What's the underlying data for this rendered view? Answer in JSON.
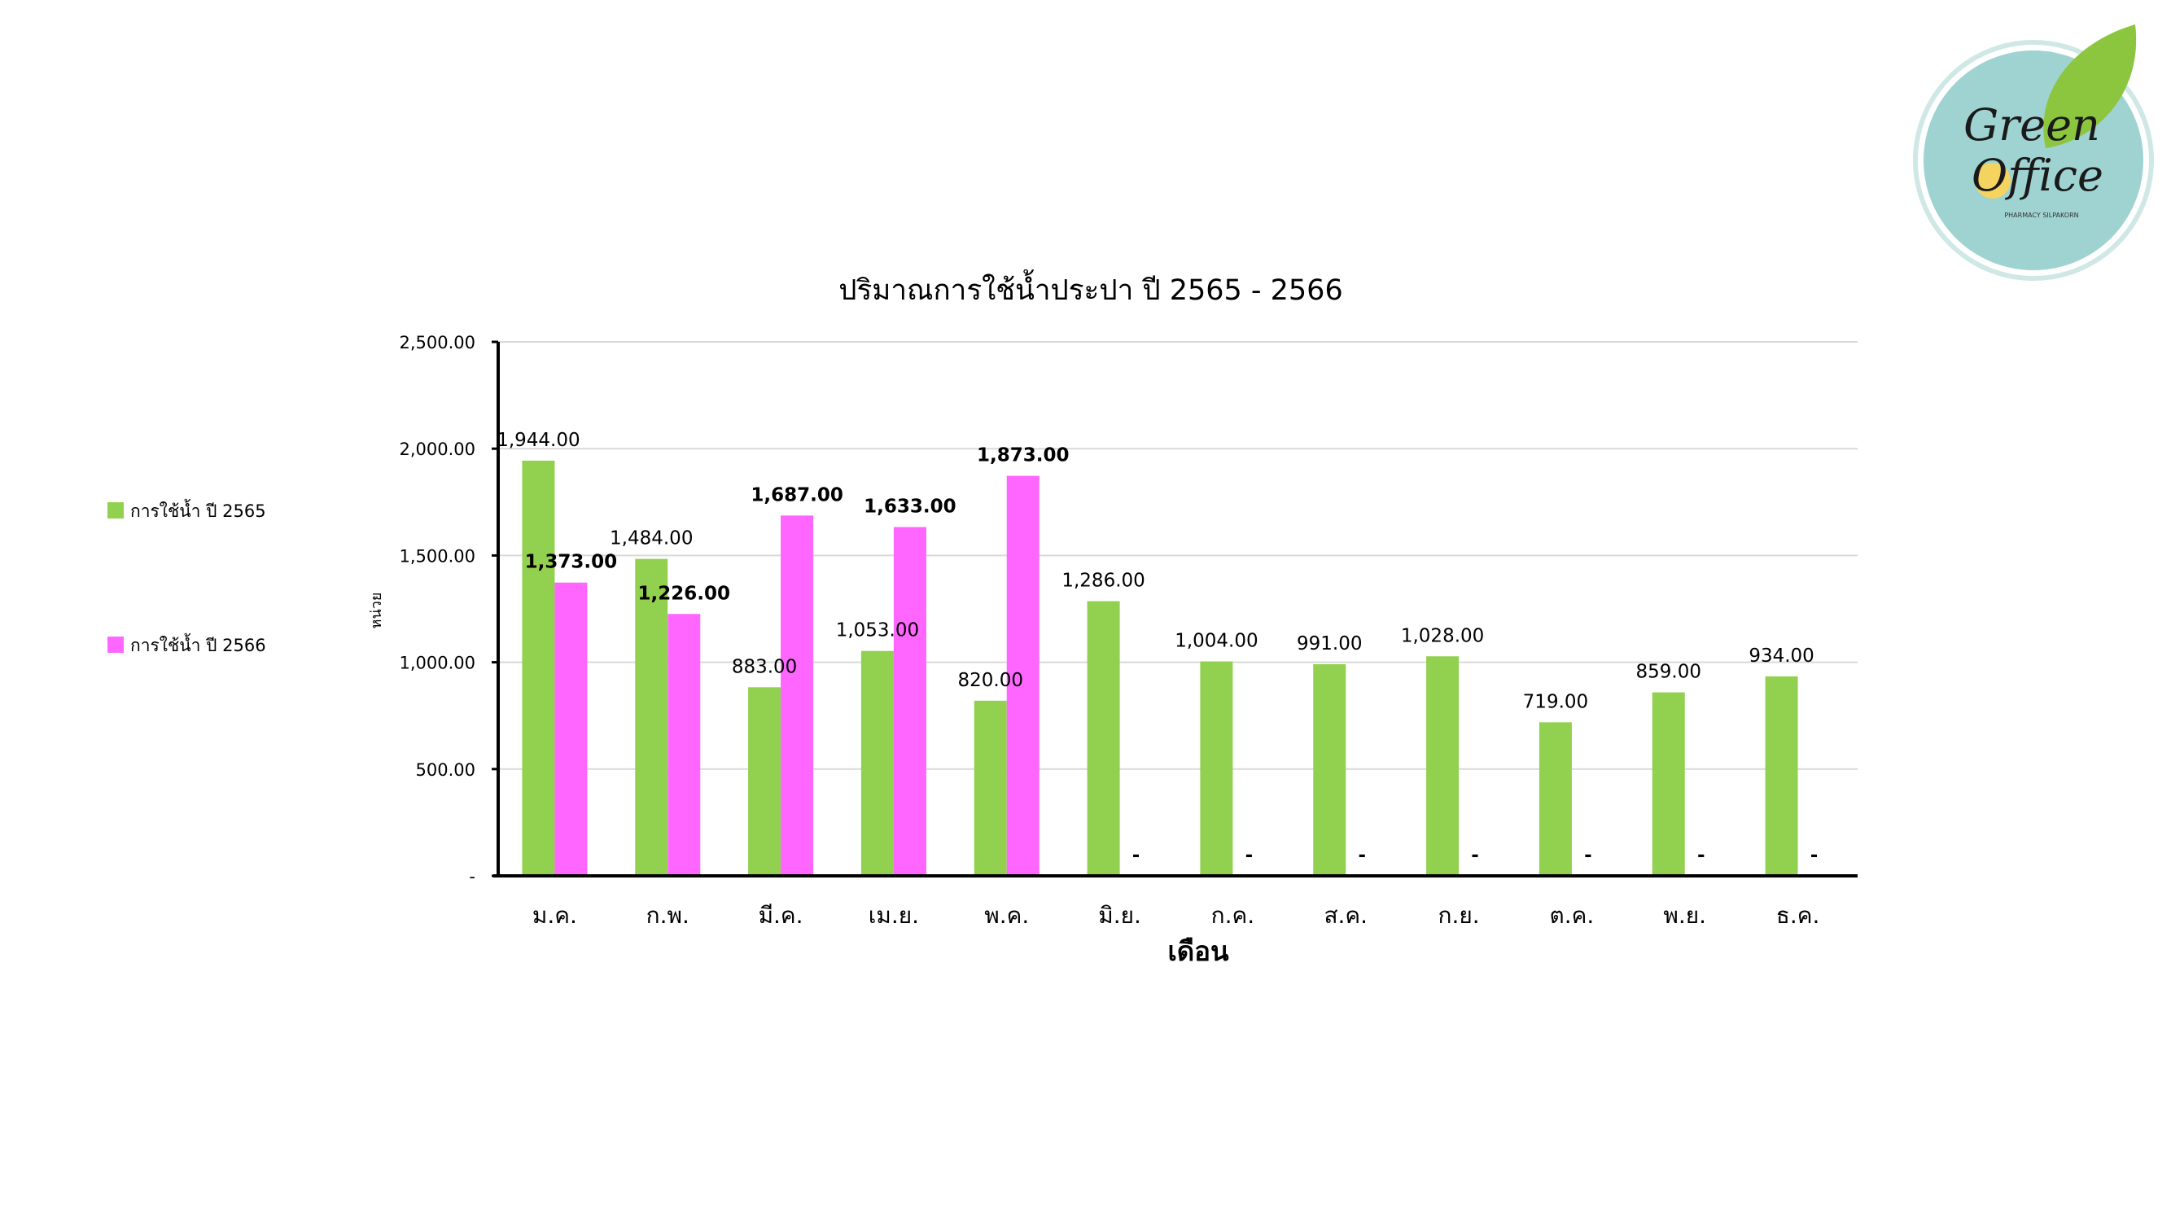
{
  "logo": {
    "line1": "Green",
    "line2": "Office",
    "small_text": "PHARMACY SILPAKORN",
    "colors": {
      "circle": "#9fd3d1",
      "ring": "#cfe8e6",
      "leaf": "#8cc63f",
      "sun": "#f4d35e"
    }
  },
  "chart_data": {
    "type": "bar",
    "title": "ปริมาณการใช้น้ำประปา ปี 2565 - 2566",
    "xlabel": "เดือน",
    "ylabel": "หน่วย",
    "ylim": [
      0,
      2500
    ],
    "yticks": [
      0,
      500,
      1000,
      1500,
      2000,
      2500
    ],
    "ytick_labels": [
      "-",
      "500.00",
      "1,000.00",
      "1,500.00",
      "2,000.00",
      "2,500.00"
    ],
    "grid": true,
    "legend_position": "left",
    "categories": [
      "ม.ค.",
      "ก.พ.",
      "มี.ค.",
      "เม.ย.",
      "พ.ค.",
      "มิ.ย.",
      "ก.ค.",
      "ส.ค.",
      "ก.ย.",
      "ต.ค.",
      "พ.ย.",
      "ธ.ค."
    ],
    "series": [
      {
        "name": "การใช้น้ำ ปี 2565",
        "color": "#92d050",
        "values": [
          1944,
          1484,
          883,
          1053,
          820,
          1286,
          1004,
          991,
          1028,
          719,
          859,
          934
        ],
        "labels": [
          "1,944.00",
          "1,484.00",
          "883.00",
          "1,053.00",
          "820.00",
          "1,286.00",
          "1,004.00",
          "991.00",
          "1,028.00",
          "719.00",
          "859.00",
          "934.00"
        ]
      },
      {
        "name": "การใช้น้ำ ปี 2566",
        "color": "#ff66ff",
        "values": [
          1373,
          1226,
          1687,
          1633,
          1873,
          0,
          0,
          0,
          0,
          0,
          0,
          0
        ],
        "labels": [
          "1,373.00",
          "1,226.00",
          "1,687.00",
          "1,633.00",
          "1,873.00",
          "-",
          "-",
          "-",
          "-",
          "-",
          "-",
          "-"
        ]
      }
    ]
  }
}
